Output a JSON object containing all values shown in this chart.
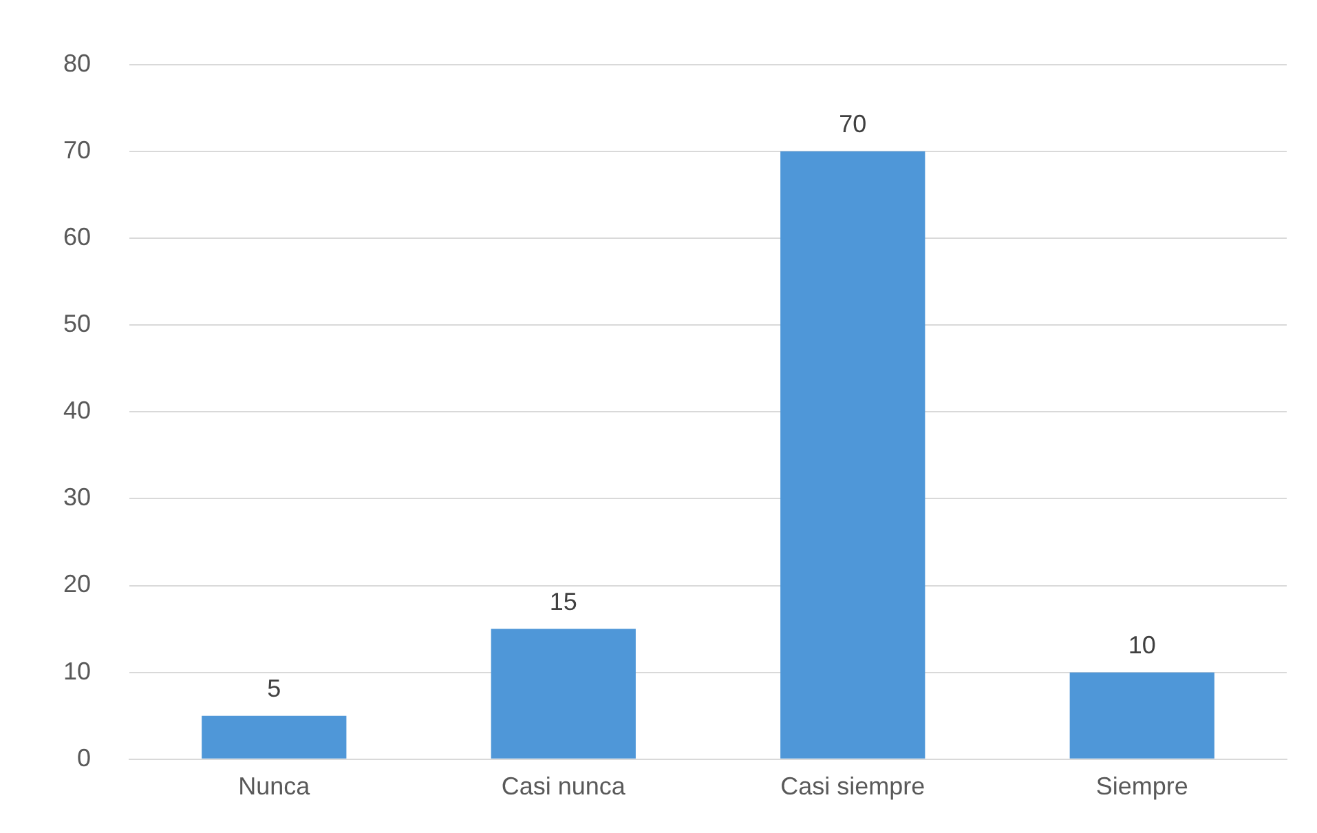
{
  "chart_data": {
    "type": "bar",
    "categories": [
      "Nunca",
      "Casi nunca",
      "Casi siempre",
      "Siempre"
    ],
    "values": [
      5,
      15,
      70,
      10
    ],
    "color": "#4f97d8",
    "ylim": [
      0,
      80
    ],
    "yticks": [
      0,
      10,
      20,
      30,
      40,
      50,
      60,
      70,
      80
    ],
    "grid": "y",
    "data_labels": true
  }
}
